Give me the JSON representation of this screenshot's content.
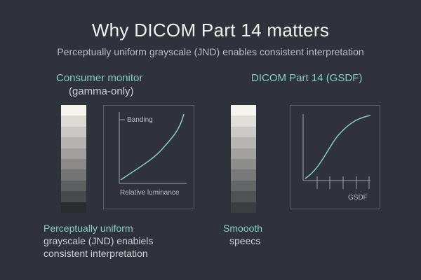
{
  "header": {
    "title": "Why DICOM Part 14 matters",
    "subtitle": "Perceptually uniform grayscale (JND) enables consistent interpretation"
  },
  "left_panel": {
    "title": "Consumer monitor",
    "subtitle": "(gamma-only)",
    "plot_label_top": "Banding",
    "plot_label_bottom": "Relative luminance",
    "note_line1": "Perceptually uniform",
    "note_line2": "grayscale (JND) enabiels",
    "note_line3": "consistent interpretation",
    "ramp_colors": [
      "#f6f4ee",
      "#dcdbd6",
      "#c8c7c3",
      "#b4b3b0",
      "#a09f9d",
      "#8b8a89",
      "#747474",
      "#5d5e60",
      "#47494c",
      "#2b2c30"
    ],
    "curve_color": "#86cfc3"
  },
  "right_panel": {
    "title": "DICOM Part 14 (GSDF)",
    "plot_label_bottom": "GSDF",
    "note_line1": "Smoooth",
    "note_line2": "speecs",
    "ramp_colors": [
      "#f6f4ee",
      "#e0dfda",
      "#cbcac6",
      "#b6b5b2",
      "#a2a19f",
      "#8d8d8c",
      "#797979",
      "#646567",
      "#505255",
      "#3c3e42"
    ],
    "curve_color": "#86cfc3"
  },
  "colors": {
    "background": "#2f323a",
    "accent": "#86cfc3",
    "frame": "#5a5e66"
  }
}
